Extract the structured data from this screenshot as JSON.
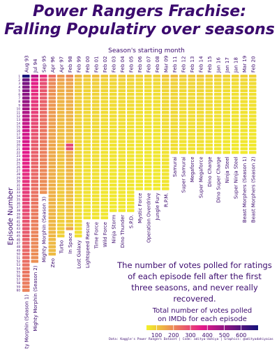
{
  "title_line1": "Power Rangers Frachise:",
  "title_line2": "Falling Populatiry over seasons",
  "note": "The number of votes polled for ratings of each episode fell after the first three seasons, and never really recovered.",
  "legend": {
    "title_line1": "Total number of votes polled",
    "title_line2": "on IMDb for each episode",
    "ticks": [
      "100",
      "200",
      "300",
      "400",
      "500",
      "600"
    ]
  },
  "caption": "Data: Kaggle's Power Rangers Dataset | Code: aditya-dahiya | Graphics: @adityadahiyaias",
  "chart_data": {
    "type": "heatmap",
    "title": "Power Rangers Frachise: Falling Populatiry over seasons",
    "xlabel": "Season's starting month",
    "ylabel": "Episode Number",
    "x_position": "top",
    "legend_placement": "bottom-right",
    "color_scale": {
      "min": 40,
      "max": 700,
      "low_color": "#f2f22a",
      "mid_color": "#e4198a",
      "high_color": "#14127a"
    },
    "episode_ticks": [
      1,
      2,
      3,
      4,
      5,
      6,
      7,
      8,
      9,
      10,
      11,
      12,
      13,
      14,
      15,
      16,
      17,
      18,
      19,
      20,
      21,
      22,
      23,
      24,
      25,
      26,
      27,
      28,
      29,
      30,
      31,
      32,
      33,
      34,
      35,
      36,
      37,
      38,
      39,
      40,
      41,
      42,
      43,
      44,
      45,
      46,
      47,
      48,
      49,
      50,
      51,
      52,
      53,
      54,
      55,
      56,
      57,
      58,
      59,
      60
    ],
    "seasons": [
      {
        "name": "Mighty Morphin (Season 1)",
        "start": "Aug 93",
        "episodes": 60,
        "votes": [
          690,
          560,
          540,
          525,
          520,
          510,
          505,
          495,
          480,
          470,
          455,
          440,
          430,
          420,
          410,
          405,
          400,
          395,
          390,
          385,
          380,
          370,
          365,
          360,
          355,
          350,
          345,
          340,
          335,
          330,
          325,
          320,
          315,
          310,
          305,
          300,
          300,
          295,
          290,
          285,
          280,
          275,
          275,
          270,
          265,
          260,
          255,
          255,
          250,
          245,
          240,
          240,
          235,
          230,
          230,
          225,
          225,
          220,
          215,
          210
        ]
      },
      {
        "name": "Mighty Morphin (Season 2)",
        "start": "Jul 94",
        "episodes": 52,
        "votes": [
          440,
          380,
          360,
          350,
          340,
          335,
          330,
          325,
          320,
          315,
          310,
          305,
          300,
          295,
          290,
          285,
          280,
          275,
          270,
          268,
          265,
          262,
          260,
          258,
          255,
          252,
          250,
          248,
          245,
          242,
          240,
          238,
          235,
          232,
          230,
          228,
          225,
          222,
          220,
          218,
          215,
          212,
          210,
          208,
          205,
          202,
          200,
          198,
          195,
          192,
          190,
          188
        ]
      },
      {
        "name": "Mighty Morphin (Season 3)",
        "start": "Sep 95",
        "episodes": 33,
        "votes": [
          330,
          300,
          290,
          280,
          275,
          270,
          265,
          260,
          255,
          250,
          245,
          240,
          238,
          235,
          232,
          230,
          228,
          225,
          222,
          220,
          218,
          215,
          212,
          210,
          208,
          205,
          202,
          200,
          198,
          195,
          192,
          190,
          188
        ]
      },
      {
        "name": "Zeo",
        "start": "Apr 96",
        "episodes": 50,
        "votes": [
          240,
          210,
          200,
          195,
          190,
          185,
          182,
          180,
          178,
          175,
          172,
          170,
          168,
          166,
          164,
          162,
          160,
          158,
          156,
          155,
          154,
          152,
          150,
          149,
          148,
          147,
          146,
          145,
          144,
          143,
          142,
          141,
          140,
          139,
          138,
          137,
          136,
          135,
          134,
          133,
          132,
          131,
          130,
          129,
          128,
          127,
          126,
          125,
          124,
          123
        ]
      },
      {
        "name": "Turbo",
        "start": "Apr 97",
        "episodes": 45,
        "votes": [
          180,
          160,
          150,
          145,
          140,
          138,
          136,
          134,
          132,
          130,
          128,
          126,
          124,
          122,
          120,
          119,
          118,
          117,
          116,
          115,
          114,
          113,
          112,
          111,
          110,
          109,
          108,
          107,
          106,
          105,
          104,
          103,
          102,
          101,
          100,
          99,
          98,
          97,
          96,
          95,
          94,
          93,
          92,
          91,
          90
        ]
      },
      {
        "name": "In Space",
        "start": "Feb 98",
        "episodes": 43,
        "votes": [
          200,
          170,
          160,
          155,
          150,
          148,
          146,
          144,
          142,
          140,
          138,
          136,
          134,
          132,
          130,
          128,
          126,
          124,
          122,
          300,
          280,
          150,
          145,
          140,
          138,
          136,
          134,
          132,
          130,
          128,
          126,
          124,
          122,
          120,
          118,
          116,
          114,
          112,
          110,
          108,
          106,
          104,
          160
        ]
      },
      {
        "name": "Lost Galaxy",
        "start": "Feb 99",
        "episodes": 45,
        "votes": [
          130,
          110,
          105,
          100,
          98,
          96,
          95,
          94,
          93,
          92,
          91,
          90,
          89,
          88,
          87,
          86,
          85,
          84,
          83,
          82,
          81,
          80,
          80,
          79,
          79,
          78,
          78,
          77,
          77,
          76,
          76,
          75,
          75,
          74,
          74,
          73,
          73,
          72,
          72,
          71,
          71,
          70,
          70,
          69,
          69
        ]
      },
      {
        "name": "Lightspeed Rescue",
        "start": "Feb 00",
        "episodes": 40,
        "votes": [
          110,
          95,
          90,
          88,
          86,
          85,
          84,
          83,
          82,
          81,
          80,
          79,
          78,
          77,
          76,
          75,
          74,
          73,
          72,
          71,
          70,
          70,
          69,
          69,
          68,
          68,
          67,
          67,
          66,
          66,
          65,
          65,
          64,
          64,
          63,
          63,
          62,
          62,
          61,
          61
        ]
      },
      {
        "name": "Time Force",
        "start": "Feb 01",
        "episodes": 40,
        "votes": [
          120,
          100,
          95,
          92,
          90,
          88,
          86,
          85,
          84,
          83,
          82,
          81,
          80,
          79,
          78,
          77,
          76,
          75,
          74,
          73,
          72,
          71,
          70,
          70,
          69,
          69,
          68,
          68,
          67,
          67,
          66,
          66,
          65,
          65,
          64,
          64,
          63,
          63,
          62,
          62
        ]
      },
      {
        "name": "Wild Force",
        "start": "Feb 02",
        "episodes": 40,
        "votes": [
          105,
          90,
          86,
          84,
          82,
          80,
          79,
          78,
          77,
          76,
          75,
          74,
          73,
          72,
          71,
          70,
          69,
          68,
          67,
          66,
          65,
          65,
          64,
          64,
          63,
          63,
          62,
          62,
          61,
          61,
          60,
          60,
          59,
          59,
          58,
          58,
          57,
          57,
          56,
          56
        ]
      },
      {
        "name": "Ninja Storm",
        "start": "Feb 03",
        "episodes": 38,
        "votes": [
          100,
          85,
          82,
          80,
          78,
          76,
          75,
          74,
          73,
          72,
          71,
          70,
          69,
          68,
          67,
          66,
          65,
          64,
          63,
          62,
          62,
          61,
          61,
          60,
          60,
          59,
          59,
          58,
          58,
          57,
          57,
          56,
          56,
          55,
          55,
          54,
          54,
          53
        ]
      },
      {
        "name": "Dino Thunder",
        "start": "Feb 04",
        "episodes": 38,
        "votes": [
          105,
          88,
          84,
          82,
          80,
          78,
          77,
          76,
          75,
          74,
          73,
          72,
          71,
          70,
          69,
          68,
          67,
          66,
          65,
          64,
          64,
          63,
          63,
          62,
          62,
          61,
          61,
          60,
          60,
          59,
          59,
          58,
          58,
          57,
          57,
          56,
          56,
          55
        ]
      },
      {
        "name": "S.P.D.",
        "start": "Feb 05",
        "episodes": 38,
        "votes": [
          100,
          86,
          82,
          80,
          78,
          76,
          75,
          74,
          73,
          72,
          71,
          70,
          69,
          68,
          67,
          66,
          65,
          64,
          63,
          62,
          62,
          61,
          61,
          60,
          60,
          59,
          59,
          58,
          58,
          57,
          57,
          56,
          56,
          55,
          55,
          54,
          54,
          53
        ]
      },
      {
        "name": "Mystic Force",
        "start": "Feb 06",
        "episodes": 32,
        "votes": [
          95,
          82,
          78,
          76,
          74,
          72,
          71,
          70,
          69,
          68,
          67,
          66,
          65,
          64,
          63,
          62,
          61,
          60,
          60,
          59,
          59,
          58,
          58,
          57,
          57,
          56,
          56,
          55,
          55,
          54,
          54,
          53
        ]
      },
      {
        "name": "Operation Overdrive",
        "start": "Feb 07",
        "episodes": 32,
        "votes": [
          90,
          78,
          74,
          72,
          70,
          69,
          68,
          67,
          66,
          65,
          64,
          63,
          62,
          61,
          60,
          59,
          58,
          58,
          57,
          57,
          56,
          56,
          55,
          55,
          54,
          54,
          53,
          53,
          52,
          52,
          51,
          51
        ]
      },
      {
        "name": "Jungle Fury",
        "start": "Feb 08",
        "episodes": 32,
        "votes": [
          92,
          80,
          76,
          74,
          72,
          70,
          69,
          68,
          67,
          66,
          65,
          64,
          63,
          62,
          61,
          60,
          59,
          58,
          58,
          57,
          57,
          56,
          56,
          55,
          55,
          54,
          54,
          53,
          53,
          52,
          52,
          51
        ]
      },
      {
        "name": "R.P.M.",
        "start": "Mar 09",
        "episodes": 32,
        "votes": [
          110,
          92,
          88,
          85,
          83,
          81,
          80,
          79,
          78,
          77,
          76,
          75,
          74,
          73,
          72,
          71,
          70,
          69,
          68,
          67,
          66,
          65,
          64,
          63,
          63,
          62,
          62,
          61,
          61,
          60,
          60,
          59
        ]
      },
      {
        "name": "Samurai",
        "start": "Feb 11",
        "episodes": 22,
        "votes": [
          120,
          95,
          90,
          88,
          86,
          84,
          83,
          82,
          81,
          80,
          79,
          78,
          77,
          76,
          75,
          74,
          73,
          72,
          71,
          70,
          69,
          68
        ]
      },
      {
        "name": "Super Samurai",
        "start": "Feb 12",
        "episodes": 22,
        "votes": [
          100,
          85,
          82,
          80,
          78,
          76,
          75,
          74,
          73,
          72,
          71,
          70,
          69,
          68,
          67,
          66,
          65,
          64,
          63,
          62,
          61,
          60
        ]
      },
      {
        "name": "Megaforce",
        "start": "Feb 13",
        "episodes": 22,
        "votes": [
          105,
          88,
          84,
          82,
          80,
          78,
          77,
          76,
          75,
          74,
          73,
          72,
          71,
          70,
          69,
          68,
          67,
          66,
          65,
          64,
          63,
          62
        ]
      },
      {
        "name": "Super Megaforce",
        "start": "Feb 14",
        "episodes": 22,
        "votes": [
          110,
          90,
          86,
          84,
          82,
          80,
          79,
          78,
          77,
          76,
          75,
          74,
          73,
          72,
          71,
          70,
          69,
          68,
          67,
          66,
          65,
          64
        ]
      },
      {
        "name": "Dino Charge",
        "start": "Feb 15",
        "episodes": 22,
        "votes": [
          100,
          85,
          82,
          80,
          78,
          76,
          75,
          74,
          73,
          72,
          71,
          70,
          69,
          68,
          67,
          66,
          65,
          64,
          63,
          62,
          61,
          60
        ]
      },
      {
        "name": "Dino Super Charge",
        "start": "Jan 16",
        "episodes": 22,
        "votes": [
          95,
          82,
          78,
          76,
          74,
          72,
          71,
          70,
          69,
          68,
          67,
          66,
          65,
          64,
          63,
          62,
          61,
          60,
          59,
          58,
          57,
          56
        ]
      },
      {
        "name": "Ninja Steel",
        "start": "Jan 17",
        "episodes": 22,
        "votes": [
          90,
          78,
          75,
          73,
          71,
          70,
          69,
          68,
          67,
          66,
          65,
          64,
          63,
          62,
          61,
          60,
          59,
          58,
          57,
          56,
          55,
          54
        ]
      },
      {
        "name": "Super Ninja Steel",
        "start": "Jan 18",
        "episodes": 22,
        "votes": [
          88,
          76,
          73,
          71,
          69,
          68,
          67,
          66,
          65,
          64,
          63,
          62,
          61,
          60,
          59,
          58,
          57,
          56,
          55,
          54,
          53,
          52
        ]
      },
      {
        "name": "Beast Morphers (Season 1)",
        "start": "Mar 19",
        "episodes": 22,
        "votes": [
          92,
          80,
          76,
          74,
          72,
          70,
          69,
          68,
          67,
          66,
          65,
          64,
          63,
          62,
          61,
          60,
          59,
          58,
          57,
          56,
          55,
          54
        ]
      },
      {
        "name": "Beast Morphers (Season 2)",
        "start": "Feb 20",
        "episodes": 22,
        "votes": [
          88,
          76,
          73,
          71,
          69,
          68,
          67,
          66,
          65,
          64,
          63,
          62,
          61,
          60,
          59,
          58,
          57,
          56,
          55,
          54,
          53,
          52
        ]
      }
    ]
  }
}
